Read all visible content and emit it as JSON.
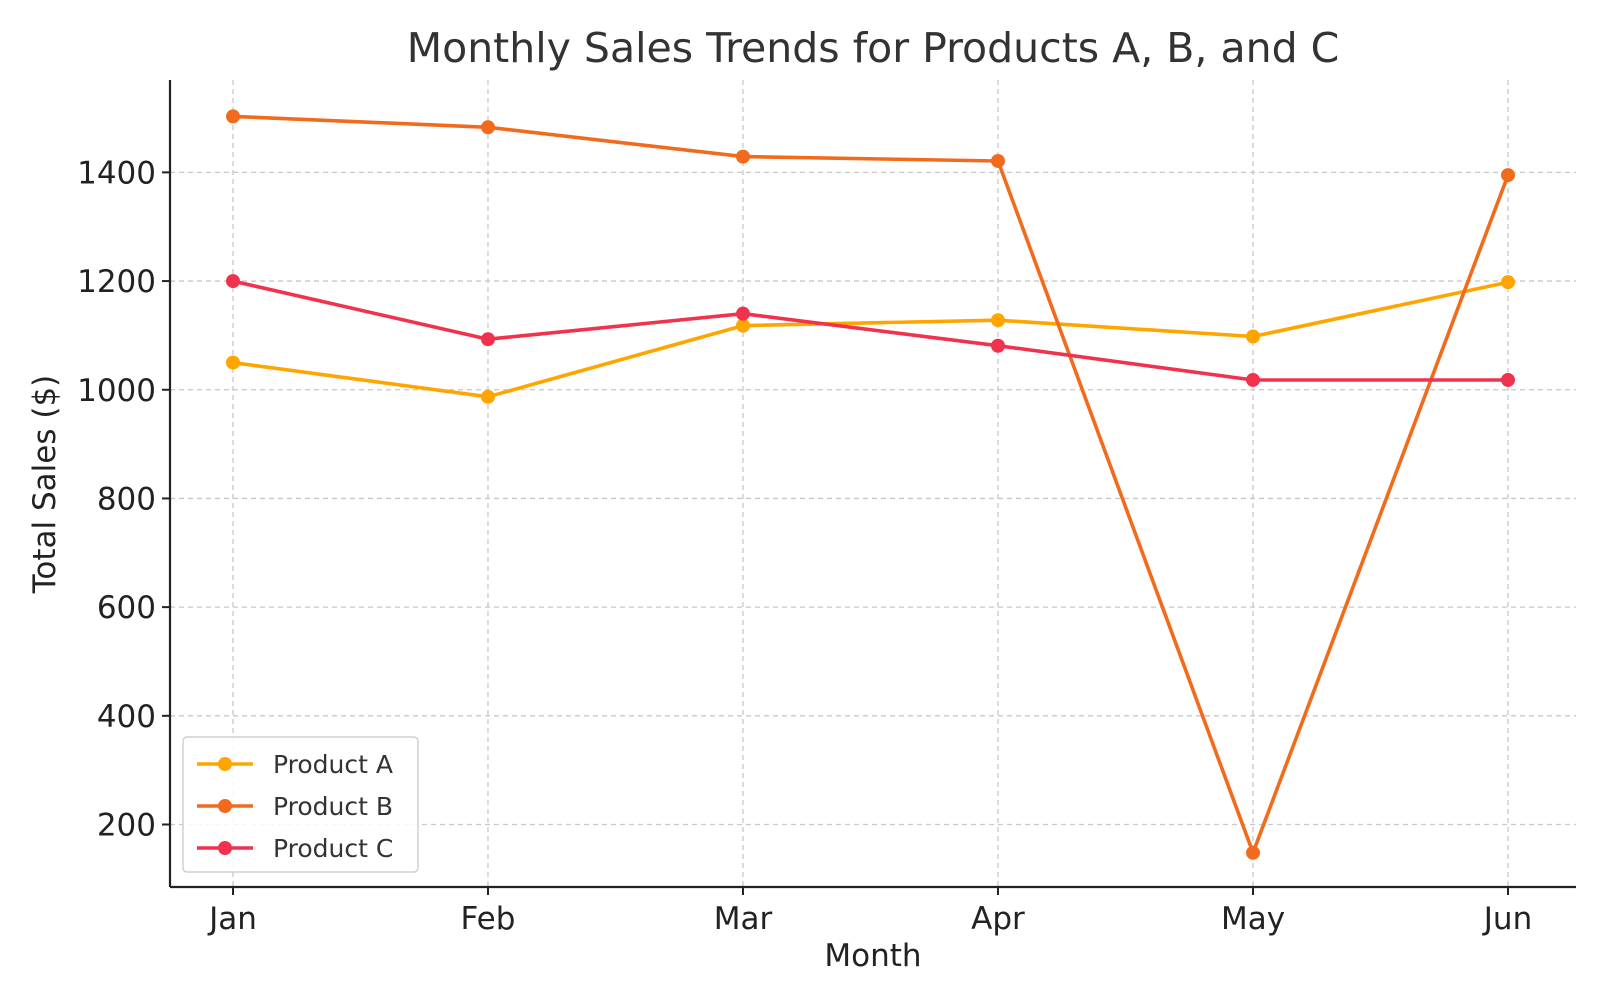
{
  "chart_data": {
    "type": "line",
    "title": "Monthly Sales Trends for Products A, B, and C",
    "xlabel": "Month",
    "ylabel": "Total Sales ($)",
    "categories": [
      "Jan",
      "Feb",
      "Mar",
      "Apr",
      "May",
      "Jun"
    ],
    "y_ticks": [
      200,
      400,
      600,
      800,
      1000,
      1200,
      1400
    ],
    "ylim": [
      85,
      1570
    ],
    "grid": true,
    "legend_position": "bottom-left",
    "series": [
      {
        "name": "Product A",
        "color": "#FFA500",
        "values": [
          1050,
          987,
          1118,
          1128,
          1098,
          1198
        ]
      },
      {
        "name": "Product B",
        "color": "#F26B1D",
        "values": [
          1503,
          1483,
          1429,
          1421,
          148,
          1395
        ]
      },
      {
        "name": "Product C",
        "color": "#F0324E",
        "values": [
          1200,
          1093,
          1140,
          1081,
          1018,
          1018
        ]
      }
    ]
  }
}
